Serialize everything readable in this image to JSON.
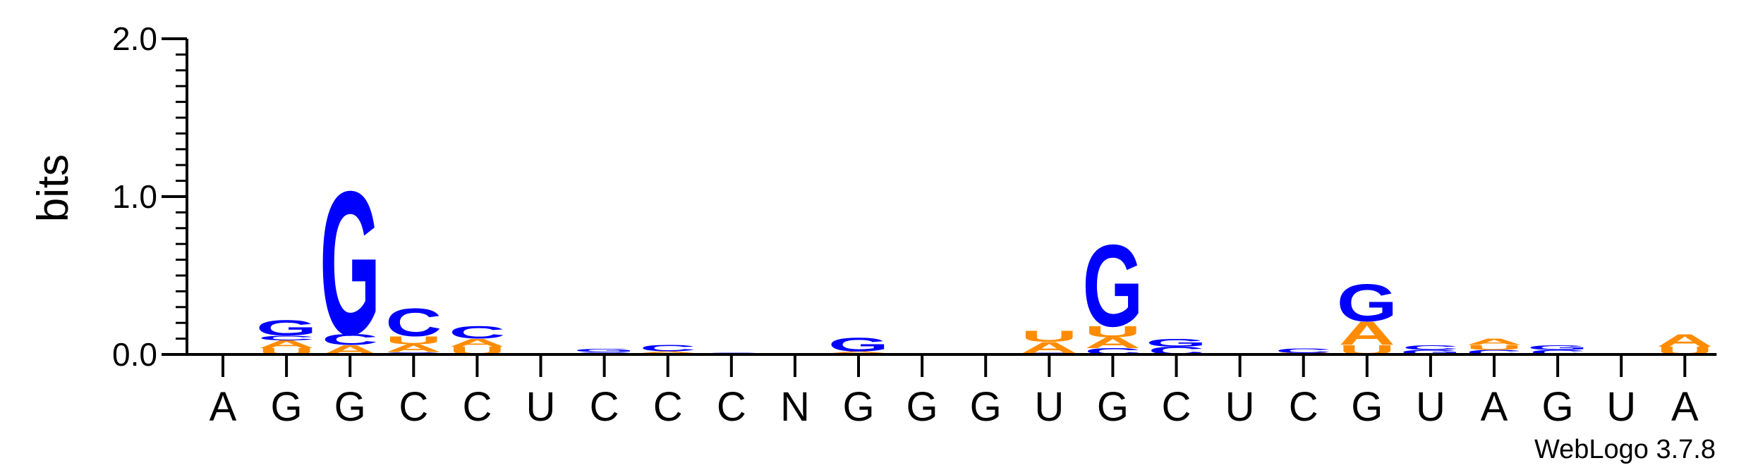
{
  "chart_data": {
    "type": "sequence-logo",
    "ylabel": "bits",
    "ylim": [
      0,
      2
    ],
    "y_ticks": [
      {
        "value": 0,
        "label": "0.0"
      },
      {
        "value": 1,
        "label": "1.0"
      },
      {
        "value": 2,
        "label": "2.0"
      }
    ],
    "credit": "WebLogo 3.7.8",
    "colors": {
      "A": "#ff8c00",
      "U": "#ff8c00",
      "G": "#0000ff",
      "C": "#0000ff"
    },
    "positions": [
      {
        "label": "A",
        "stack": []
      },
      {
        "label": "G",
        "stack": [
          {
            "letter": "U",
            "height": 0.04
          },
          {
            "letter": "A",
            "height": 0.05
          },
          {
            "letter": "C",
            "height": 0.03
          },
          {
            "letter": "G",
            "height": 0.1
          }
        ]
      },
      {
        "label": "G",
        "stack": [
          {
            "letter": "A",
            "height": 0.06
          },
          {
            "letter": "C",
            "height": 0.07
          },
          {
            "letter": "G",
            "height": 0.93
          }
        ]
      },
      {
        "label": "C",
        "stack": [
          {
            "letter": "G",
            "height": 0.015
          },
          {
            "letter": "A",
            "height": 0.05
          },
          {
            "letter": "U",
            "height": 0.05
          },
          {
            "letter": "C",
            "height": 0.18
          }
        ]
      },
      {
        "label": "C",
        "stack": [
          {
            "letter": "U",
            "height": 0.05
          },
          {
            "letter": "A",
            "height": 0.05
          },
          {
            "letter": "C",
            "height": 0.08
          }
        ]
      },
      {
        "label": "U",
        "stack": []
      },
      {
        "label": "C",
        "stack": [
          {
            "letter": "C",
            "height": 0.015
          },
          {
            "letter": "G",
            "height": 0.02
          }
        ]
      },
      {
        "label": "C",
        "stack": [
          {
            "letter": "U",
            "height": 0.01
          },
          {
            "letter": "A",
            "height": 0.01
          },
          {
            "letter": "C",
            "height": 0.04
          }
        ]
      },
      {
        "label": "C",
        "stack": [
          {
            "letter": "C",
            "height": 0.01
          }
        ]
      },
      {
        "label": "N",
        "stack": []
      },
      {
        "label": "G",
        "stack": [
          {
            "letter": "U",
            "height": 0.01
          },
          {
            "letter": "A",
            "height": 0.01
          },
          {
            "letter": "G",
            "height": 0.09
          }
        ]
      },
      {
        "label": "G",
        "stack": [
          {
            "letter": "G",
            "height": 0.005
          }
        ]
      },
      {
        "label": "G",
        "stack": [
          {
            "letter": "G",
            "height": 0.005
          }
        ]
      },
      {
        "label": "U",
        "stack": [
          {
            "letter": "C",
            "height": 0.01
          },
          {
            "letter": "A",
            "height": 0.07
          },
          {
            "letter": "U",
            "height": 0.07
          }
        ]
      },
      {
        "label": "G",
        "stack": [
          {
            "letter": "C",
            "height": 0.04
          },
          {
            "letter": "A",
            "height": 0.07
          },
          {
            "letter": "U",
            "height": 0.07
          },
          {
            "letter": "G",
            "height": 0.53
          }
        ]
      },
      {
        "label": "C",
        "stack": [
          {
            "letter": "C",
            "height": 0.05
          },
          {
            "letter": "G",
            "height": 0.05
          }
        ]
      },
      {
        "label": "U",
        "stack": []
      },
      {
        "label": "C",
        "stack": [
          {
            "letter": "U",
            "height": 0.01
          },
          {
            "letter": "C",
            "height": 0.03
          }
        ]
      },
      {
        "label": "G",
        "stack": [
          {
            "letter": "U",
            "height": 0.06
          },
          {
            "letter": "A",
            "height": 0.15
          },
          {
            "letter": "G",
            "height": 0.24
          }
        ]
      },
      {
        "label": "U",
        "stack": [
          {
            "letter": "G",
            "height": 0.03
          },
          {
            "letter": "C",
            "height": 0.03
          }
        ]
      },
      {
        "label": "A",
        "stack": [
          {
            "letter": "C",
            "height": 0.03
          },
          {
            "letter": "U",
            "height": 0.03
          },
          {
            "letter": "A",
            "height": 0.04
          }
        ]
      },
      {
        "label": "G",
        "stack": [
          {
            "letter": "C",
            "height": 0.03
          },
          {
            "letter": "G",
            "height": 0.03
          }
        ]
      },
      {
        "label": "U",
        "stack": []
      },
      {
        "label": "A",
        "stack": [
          {
            "letter": "U",
            "height": 0.05
          },
          {
            "letter": "A",
            "height": 0.08
          }
        ]
      }
    ]
  }
}
